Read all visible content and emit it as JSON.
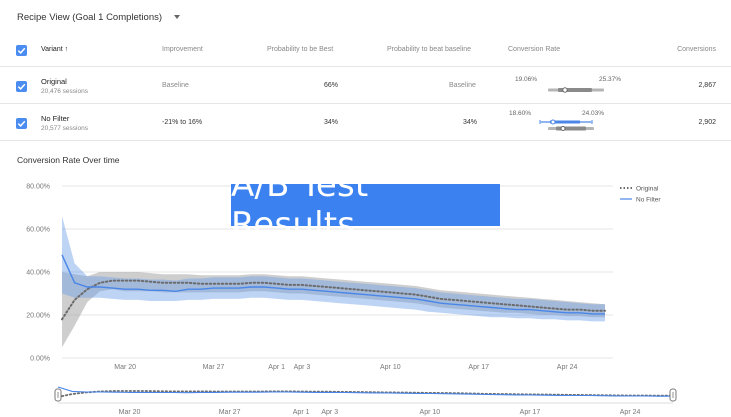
{
  "header": {
    "recipe_select": "Recipe View (Goal 1 Completions)"
  },
  "table": {
    "columns": [
      "Variant",
      "Improvement",
      "Probability to be Best",
      "Probability to beat baseline",
      "Conversion Rate",
      "Conversions"
    ],
    "sort_arrow": "↑",
    "rows": [
      {
        "name": "Original",
        "sessions": "20,476 sessions",
        "improvement": "Baseline",
        "prob_best": "66%",
        "prob_beat": "Baseline",
        "ci_low": "19.06%",
        "ci_high": "25.37%",
        "conversions": "2,867"
      },
      {
        "name": "No Filter",
        "sessions": "20,577 sessions",
        "improvement": "-21% to 16%",
        "prob_best": "34%",
        "prob_beat": "34%",
        "ci_low": "18.60%",
        "ci_high": "24.03%",
        "conversions": "2,902"
      }
    ]
  },
  "chart_title": "Conversion Rate Over time",
  "overlay_banner": "A/B Test Results",
  "colors": {
    "original": "#6b6b6b",
    "no_filter": "#4a86e8",
    "checkbox": "#4a8cf0",
    "banner": "#3b82f0"
  },
  "chart_data": {
    "type": "line",
    "title": "Conversion Rate Over time",
    "xlabel": "",
    "ylabel": "",
    "ylim": [
      0,
      80
    ],
    "yticks": [
      "0.00%",
      "20.00%",
      "40.00%",
      "60.00%",
      "80.00%"
    ],
    "xticks": [
      "Mar 20",
      "Mar 27",
      "Apr 1",
      "Apr 3",
      "Apr 10",
      "Apr 17",
      "Apr 24"
    ],
    "x": [
      "Mar 15",
      "Mar 16",
      "Mar 17",
      "Mar 18",
      "Mar 19",
      "Mar 20",
      "Mar 21",
      "Mar 22",
      "Mar 23",
      "Mar 24",
      "Mar 25",
      "Mar 26",
      "Mar 27",
      "Mar 28",
      "Mar 29",
      "Mar 30",
      "Mar 31",
      "Apr 1",
      "Apr 2",
      "Apr 3",
      "Apr 4",
      "Apr 5",
      "Apr 6",
      "Apr 7",
      "Apr 8",
      "Apr 9",
      "Apr 10",
      "Apr 11",
      "Apr 12",
      "Apr 13",
      "Apr 14",
      "Apr 15",
      "Apr 16",
      "Apr 17",
      "Apr 18",
      "Apr 19",
      "Apr 20",
      "Apr 21",
      "Apr 22",
      "Apr 23",
      "Apr 24",
      "Apr 25",
      "Apr 26",
      "Apr 27"
    ],
    "legend": "top-right",
    "series": [
      {
        "name": "Original",
        "style": "dotted",
        "values": [
          18,
          27,
          32,
          35,
          36,
          36,
          36,
          35.5,
          35,
          35,
          35,
          34.5,
          34.5,
          34.5,
          34.5,
          35,
          35,
          34.5,
          34,
          34,
          33.5,
          33,
          32.5,
          32,
          31.5,
          31,
          30.5,
          30,
          29.5,
          28.5,
          27.5,
          27,
          26.5,
          26,
          25.5,
          25,
          24.5,
          24,
          23.5,
          23,
          22.5,
          22.5,
          22,
          22
        ],
        "lower": [
          5,
          15,
          26,
          31,
          32,
          31,
          31,
          31,
          30.5,
          30.5,
          30.5,
          30.5,
          30.5,
          30.5,
          30.5,
          31,
          31,
          30.5,
          30,
          30,
          29.5,
          29,
          28.5,
          28,
          27.5,
          27,
          26.5,
          26,
          25.5,
          24.5,
          23.5,
          23,
          22.5,
          22,
          21.5,
          21,
          21,
          20.5,
          20,
          20,
          19.5,
          19.5,
          19,
          19
        ],
        "upper": [
          40,
          39,
          38,
          40,
          40,
          40,
          40,
          39.5,
          39,
          39,
          39,
          38.5,
          38.5,
          38.5,
          38.5,
          39,
          39,
          38.5,
          38,
          38,
          37.5,
          37,
          36.5,
          36,
          35.5,
          35,
          34.5,
          34,
          33.5,
          32.5,
          31.5,
          31,
          30.5,
          30,
          29.5,
          29,
          28.5,
          28,
          27.5,
          27,
          26.5,
          26,
          25.5,
          25
        ]
      },
      {
        "name": "No Filter",
        "style": "solid",
        "values": [
          48,
          35,
          33,
          33,
          32.5,
          32,
          32,
          31.5,
          31.5,
          31,
          32,
          32,
          32.5,
          32.5,
          32.5,
          33,
          33,
          32.5,
          32,
          32,
          31.5,
          31,
          30.5,
          30,
          29.5,
          29,
          28.5,
          28,
          27.5,
          26.5,
          25.5,
          25,
          24.5,
          24,
          23.5,
          23,
          22.5,
          22.5,
          22,
          21.5,
          21,
          21,
          20.5,
          20.5
        ],
        "lower": [
          30,
          28,
          28,
          28,
          27.5,
          27,
          27,
          26.5,
          26.5,
          26.5,
          27,
          27,
          27.5,
          27.5,
          27.5,
          28,
          28,
          27.5,
          27,
          27,
          26.5,
          26,
          25.5,
          25,
          24.5,
          24,
          23.5,
          23,
          22.5,
          21.5,
          21,
          20.5,
          20,
          19.5,
          19,
          19,
          18.5,
          18.5,
          18,
          18,
          17.5,
          17.5,
          17,
          17
        ],
        "upper": [
          66,
          44,
          38,
          38,
          37.5,
          37,
          37,
          36.5,
          36.5,
          36,
          37,
          37,
          37.5,
          37.5,
          37.5,
          38,
          38,
          37.5,
          37,
          37,
          36.5,
          36,
          35.5,
          35,
          34.5,
          34,
          33.5,
          33,
          32.5,
          31.5,
          30.5,
          30,
          29.5,
          29,
          28.5,
          28,
          27.5,
          27.5,
          27,
          26.5,
          26,
          25.5,
          25,
          25
        ]
      }
    ]
  }
}
